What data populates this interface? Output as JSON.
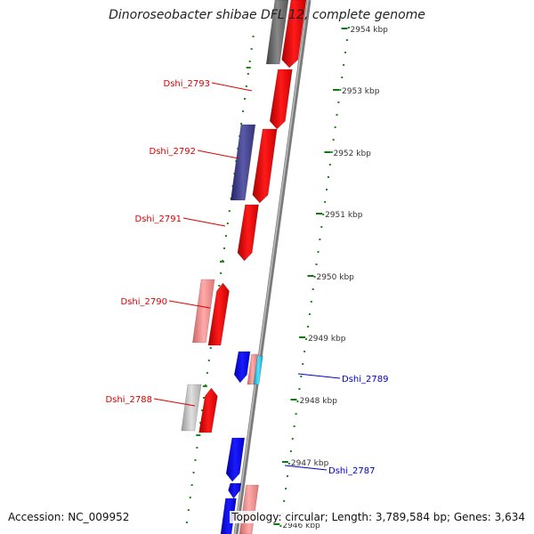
{
  "title": "Dinoroseobacter shibae DFL 12, complete genome",
  "footer": {
    "accession": "Accession: NC_009952",
    "topology": "Topology: circular; Length: 3,789,584 bp; Genes: 3,634"
  },
  "colors": {
    "forward_cds": "#ee0000",
    "reverse_cds": "#0000ee",
    "pink_cds": "#ee8888",
    "grey_cds": "#777777",
    "lightgrey_cds": "#bbbbbb",
    "navy_cds": "#444488",
    "cyan_cds": "#22ccee",
    "tick_green": "#117711",
    "backbone": "#888888"
  },
  "scale_labels": [
    {
      "text": "2954 kbp"
    },
    {
      "text": "2953 kbp"
    },
    {
      "text": "2952 kbp"
    },
    {
      "text": "2951 kbp"
    },
    {
      "text": "2950 kbp"
    },
    {
      "text": "2949 kbp"
    },
    {
      "text": "2948 kbp"
    },
    {
      "text": "2947 kbp"
    },
    {
      "text": "2946 kbp"
    }
  ],
  "gene_labels_left": [
    {
      "text": "Dshi_2793",
      "color": "#dd0000"
    },
    {
      "text": "Dshi_2792",
      "color": "#dd0000"
    },
    {
      "text": "Dshi_2791",
      "color": "#dd0000"
    },
    {
      "text": "Dshi_2790",
      "color": "#dd0000"
    },
    {
      "text": "Dshi_2788",
      "color": "#dd0000"
    }
  ],
  "gene_labels_right": [
    {
      "text": "Dshi_2789",
      "color": "#0000cc"
    },
    {
      "text": "Dshi_2787",
      "color": "#0000cc"
    }
  ]
}
